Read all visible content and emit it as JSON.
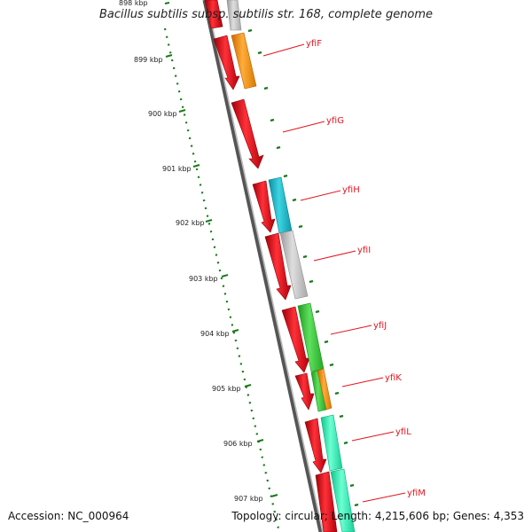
{
  "title": "Bacillus subtilis subsp. subtilis str. 168, complete genome",
  "footer": {
    "accession": "Accession: NC_000964",
    "summary": "Topology: circular; Length: 4,215,606 bp; Genes: 4,353"
  },
  "kbp_labels": [
    "898 kbp",
    "899 kbp",
    "900 kbp",
    "901 kbp",
    "902 kbp",
    "903 kbp",
    "904 kbp",
    "905 kbp",
    "906 kbp",
    "907 kbp"
  ],
  "gene_labels": [
    "yfiF",
    "yfiG",
    "yfiH",
    "yfiI",
    "yfiJ",
    "yfiK",
    "yfiL",
    "yfiM"
  ],
  "colors": {
    "cds_red": "#e8101a",
    "orange": "#ff9410",
    "cyan": "#1ab8c8",
    "gray": "#c6c6c6",
    "green": "#3ec43e",
    "mint": "#2ff0b4",
    "tick_green": "#1a7a1a",
    "label_red": "#e3151f"
  }
}
